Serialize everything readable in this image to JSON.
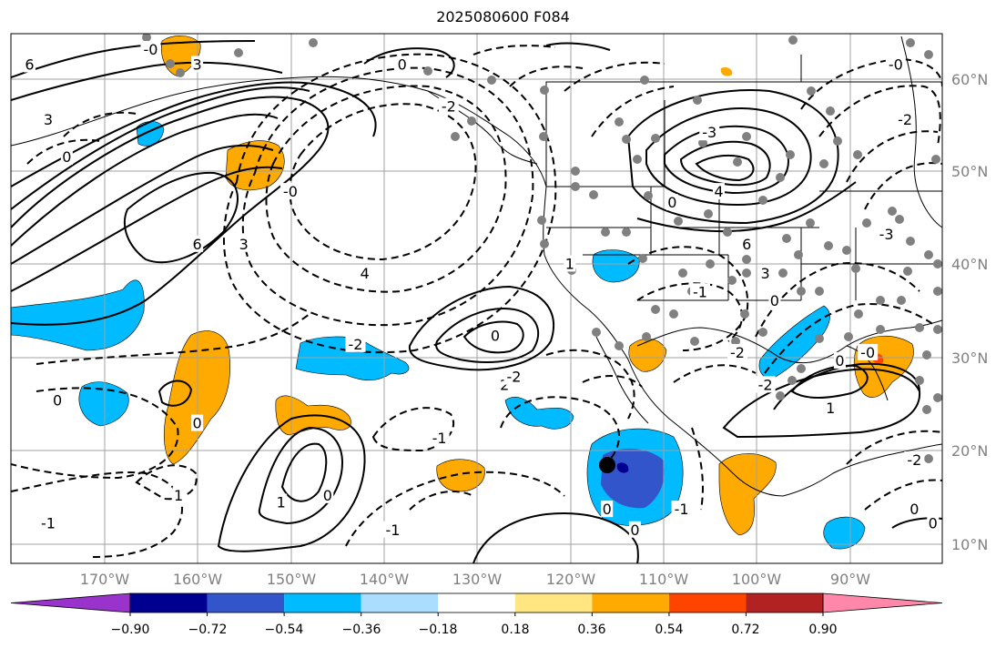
{
  "title": "2025080600 F084",
  "colorbar": {
    "colors": [
      "#9933cc",
      "#000090",
      "#3355cc",
      "#00bbff",
      "#aaddff",
      "#ffffff",
      "#ffe680",
      "#ffaa00",
      "#ff4400",
      "#b22222",
      "#ff88aa"
    ],
    "ticks": [
      "−0.90",
      "−0.72",
      "−0.54",
      "−0.36",
      "−0.18",
      "0.18",
      "0.36",
      "0.54",
      "0.72",
      "0.90"
    ]
  },
  "map_data": {
    "projection": "Mercator",
    "lon_range": [
      -180,
      -80
    ],
    "lat_range": [
      7,
      65
    ],
    "lat_ticks": [
      "60°N",
      "50°N",
      "40°N",
      "30°N",
      "20°N",
      "10°N"
    ],
    "lon_ticks": [
      "170°W",
      "160°W",
      "150°W",
      "140°W",
      "130°W",
      "120°W",
      "110°W",
      "100°W",
      "90°W"
    ],
    "contour_labels": [
      {
        "text": "6",
        "lon": -178,
        "lat": 63
      },
      {
        "text": "3",
        "lon": -176,
        "lat": 59
      },
      {
        "text": "0",
        "lon": -174,
        "lat": 56
      },
      {
        "text": "-0",
        "lon": -165,
        "lat": 64
      },
      {
        "text": "3",
        "lon": -160,
        "lat": 63
      },
      {
        "text": "6",
        "lon": -160,
        "lat": 48
      },
      {
        "text": "3",
        "lon": -155,
        "lat": 48
      },
      {
        "text": "-0",
        "lon": -150,
        "lat": 53
      },
      {
        "text": "4",
        "lon": -142,
        "lat": 45
      },
      {
        "text": "-2",
        "lon": -143,
        "lat": 37
      },
      {
        "text": "-2",
        "lon": -133,
        "lat": 60
      },
      {
        "text": "0",
        "lon": -138,
        "lat": 63
      },
      {
        "text": "0",
        "lon": -128,
        "lat": 38
      },
      {
        "text": "2",
        "lon": -127,
        "lat": 32
      },
      {
        "text": "-2",
        "lon": -126,
        "lat": 33
      },
      {
        "text": "0",
        "lon": -175,
        "lat": 30
      },
      {
        "text": "0",
        "lon": -160,
        "lat": 27
      },
      {
        "text": "0",
        "lon": -146,
        "lat": 17
      },
      {
        "text": "1",
        "lon": -151,
        "lat": 16
      },
      {
        "text": "-1",
        "lon": -176,
        "lat": 13
      },
      {
        "text": "1",
        "lon": -162,
        "lat": 17
      },
      {
        "text": "-1",
        "lon": -139,
        "lat": 12
      },
      {
        "text": "-1",
        "lon": -134,
        "lat": 25
      },
      {
        "text": "0",
        "lon": -116,
        "lat": 15
      },
      {
        "text": "0",
        "lon": -113,
        "lat": 12
      },
      {
        "text": "-1",
        "lon": -108,
        "lat": 15
      },
      {
        "text": "1",
        "lon": -120,
        "lat": 46
      },
      {
        "text": "0",
        "lon": -109,
        "lat": 52
      },
      {
        "text": "4",
        "lon": -104,
        "lat": 53
      },
      {
        "text": "6",
        "lon": -101,
        "lat": 48
      },
      {
        "text": "3",
        "lon": -99,
        "lat": 45
      },
      {
        "text": "-3",
        "lon": -105,
        "lat": 58
      },
      {
        "text": "-1",
        "lon": -106,
        "lat": 43
      },
      {
        "text": "-2",
        "lon": -102,
        "lat": 36
      },
      {
        "text": "-2",
        "lon": -99,
        "lat": 32
      },
      {
        "text": "0",
        "lon": -98,
        "lat": 42
      },
      {
        "text": "-0",
        "lon": -85,
        "lat": 63
      },
      {
        "text": "-2",
        "lon": -84,
        "lat": 59
      },
      {
        "text": "-3",
        "lon": -86,
        "lat": 49
      },
      {
        "text": "0",
        "lon": -91,
        "lat": 35
      },
      {
        "text": "-0",
        "lon": -88,
        "lat": 36
      },
      {
        "text": "1",
        "lon": -92,
        "lat": 29
      },
      {
        "text": "-2",
        "lon": -83,
        "lat": 22
      },
      {
        "text": "0",
        "lon": -83,
        "lat": 15
      },
      {
        "text": "0",
        "lon": -81,
        "lat": 13
      }
    ]
  }
}
